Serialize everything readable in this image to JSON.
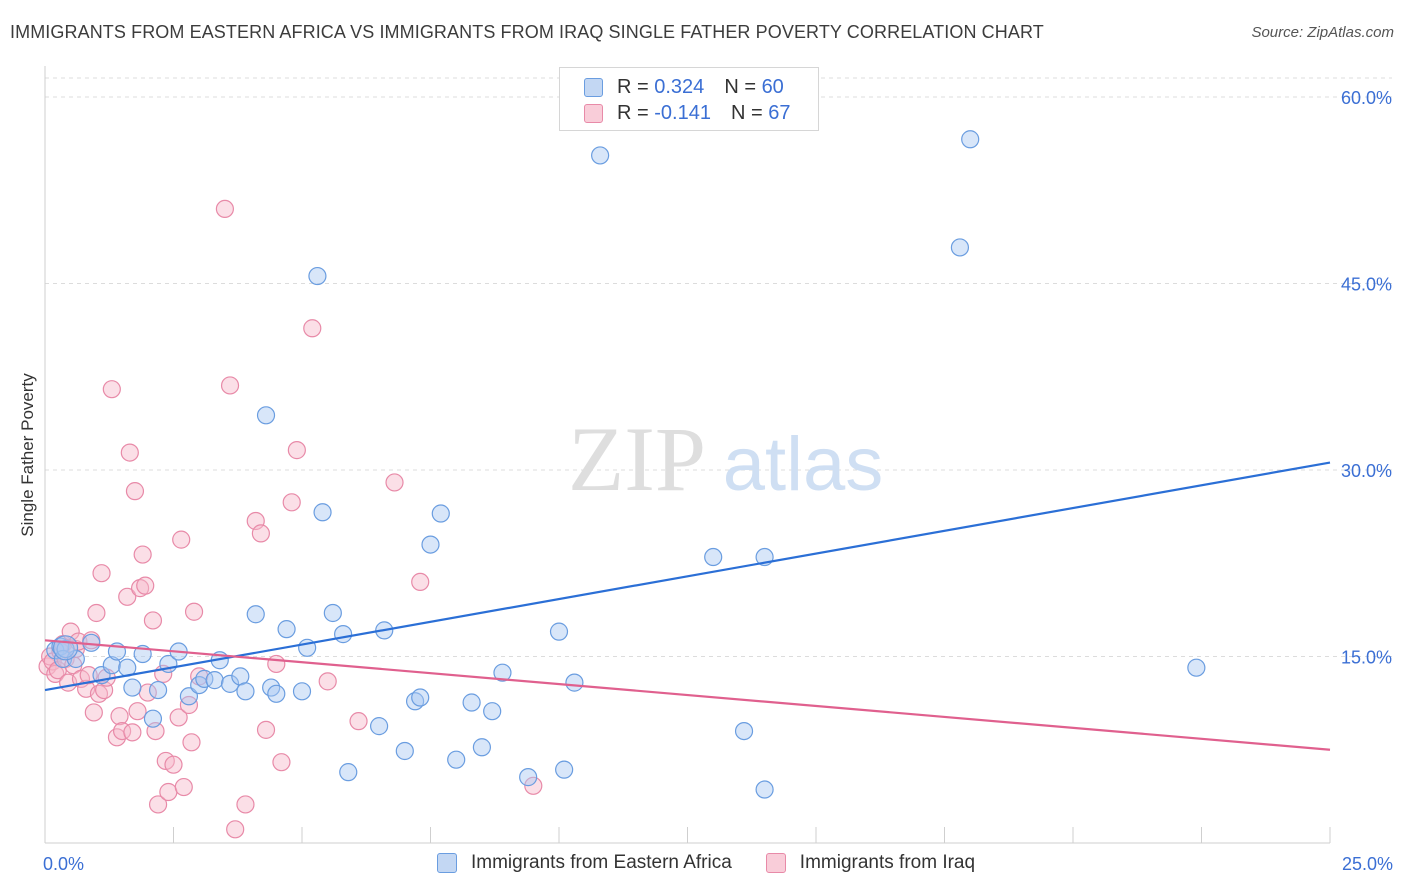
{
  "title": "IMMIGRANTS FROM EASTERN AFRICA VS IMMIGRANTS FROM IRAQ SINGLE FATHER POVERTY CORRELATION CHART",
  "source": "Source: ZipAtlas.com",
  "watermark": {
    "zip": "ZIP",
    "atlas": "atlas"
  },
  "colors": {
    "blue_fill": "#a9c8f2",
    "blue_stroke": "#6a9de0",
    "blue_line": "#2b6fd6",
    "pink_fill": "#f6b9ca",
    "pink_stroke": "#e88aa8",
    "pink_line": "#e0608e",
    "axis_label": "#3b6fd4"
  },
  "legend_top": [
    {
      "r_label": "R =",
      "r_value": "0.324",
      "n_label": "N =",
      "n_value": "60"
    },
    {
      "r_label": "R =",
      "r_value": "-0.141",
      "n_label": "N =",
      "n_value": "67"
    }
  ],
  "legend_bottom": [
    "Immigrants from Eastern Africa",
    "Immigrants from Iraq"
  ],
  "chart_data": {
    "type": "scatter",
    "title": "IMMIGRANTS FROM EASTERN AFRICA VS IMMIGRANTS FROM IRAQ SINGLE FATHER POVERTY CORRELATION CHART",
    "xlabel": "",
    "ylabel": "Single Father Poverty",
    "xlim": [
      0,
      25
    ],
    "ylim": [
      0,
      60
    ],
    "x_tick_labels": [
      "0.0%",
      "25.0%"
    ],
    "y_tick_values": [
      15,
      30,
      45,
      60
    ],
    "y_tick_labels": [
      "15.0%",
      "30.0%",
      "45.0%",
      "60.0%"
    ],
    "series": [
      {
        "name": "Immigrants from Eastern Africa",
        "r": 0.324,
        "n": 60,
        "trend": {
          "x": [
            0,
            25
          ],
          "y": [
            12.3,
            30.6
          ]
        },
        "points": [
          [
            0.2,
            15.5
          ],
          [
            0.3,
            15.8
          ],
          [
            0.35,
            14.8
          ],
          [
            0.6,
            14.8
          ],
          [
            0.9,
            16.1
          ],
          [
            1.1,
            13.5
          ],
          [
            1.3,
            14.3
          ],
          [
            1.4,
            15.4
          ],
          [
            1.6,
            14.1
          ],
          [
            1.7,
            12.5
          ],
          [
            1.9,
            15.2
          ],
          [
            2.1,
            10.0
          ],
          [
            2.2,
            12.3
          ],
          [
            2.4,
            14.4
          ],
          [
            2.6,
            15.4
          ],
          [
            2.8,
            11.8
          ],
          [
            3.0,
            12.7
          ],
          [
            3.1,
            13.2
          ],
          [
            3.3,
            13.1
          ],
          [
            3.4,
            14.7
          ],
          [
            3.6,
            12.8
          ],
          [
            3.8,
            13.4
          ],
          [
            3.9,
            12.2
          ],
          [
            4.1,
            18.4
          ],
          [
            4.3,
            34.4
          ],
          [
            4.4,
            12.5
          ],
          [
            4.5,
            12.0
          ],
          [
            4.7,
            17.2
          ],
          [
            5.0,
            12.2
          ],
          [
            5.1,
            15.7
          ],
          [
            5.3,
            45.6
          ],
          [
            5.4,
            26.6
          ],
          [
            5.6,
            18.5
          ],
          [
            5.8,
            16.8
          ],
          [
            5.9,
            5.7
          ],
          [
            6.5,
            9.4
          ],
          [
            6.6,
            17.1
          ],
          [
            7.0,
            7.4
          ],
          [
            7.2,
            11.4
          ],
          [
            7.3,
            11.7
          ],
          [
            7.5,
            24.0
          ],
          [
            7.7,
            26.5
          ],
          [
            8.0,
            6.7
          ],
          [
            8.3,
            11.3
          ],
          [
            8.5,
            7.7
          ],
          [
            8.7,
            10.6
          ],
          [
            8.9,
            13.7
          ],
          [
            9.4,
            5.3
          ],
          [
            10.0,
            17.0
          ],
          [
            10.1,
            5.9
          ],
          [
            10.3,
            12.9
          ],
          [
            10.8,
            55.3
          ],
          [
            13.0,
            23.0
          ],
          [
            13.6,
            9.0
          ],
          [
            14.0,
            23.0
          ],
          [
            14.0,
            4.3
          ],
          [
            17.8,
            47.9
          ],
          [
            18.0,
            56.6
          ],
          [
            22.4,
            14.1
          ],
          [
            0.4,
            15.6
          ]
        ]
      },
      {
        "name": "Immigrants from Iraq",
        "r": -0.141,
        "n": 67,
        "trend": {
          "x": [
            0,
            25
          ],
          "y": [
            16.3,
            7.5
          ]
        },
        "points": [
          [
            0.05,
            14.2
          ],
          [
            0.1,
            15.0
          ],
          [
            0.15,
            14.6
          ],
          [
            0.2,
            13.6
          ],
          [
            0.25,
            13.9
          ],
          [
            0.3,
            15.4
          ],
          [
            0.35,
            16.0
          ],
          [
            0.4,
            14.8
          ],
          [
            0.45,
            12.9
          ],
          [
            0.5,
            17.0
          ],
          [
            0.55,
            14.3
          ],
          [
            0.6,
            15.6
          ],
          [
            0.65,
            16.2
          ],
          [
            0.7,
            13.2
          ],
          [
            0.8,
            12.4
          ],
          [
            0.85,
            13.5
          ],
          [
            0.9,
            16.3
          ],
          [
            0.95,
            10.5
          ],
          [
            1.0,
            18.5
          ],
          [
            1.05,
            12.0
          ],
          [
            1.1,
            21.7
          ],
          [
            1.15,
            12.3
          ],
          [
            1.2,
            13.3
          ],
          [
            1.3,
            36.5
          ],
          [
            1.4,
            8.5
          ],
          [
            1.45,
            10.2
          ],
          [
            1.5,
            9.0
          ],
          [
            1.6,
            19.8
          ],
          [
            1.65,
            31.4
          ],
          [
            1.7,
            8.9
          ],
          [
            1.75,
            28.3
          ],
          [
            1.8,
            10.6
          ],
          [
            1.85,
            20.5
          ],
          [
            1.9,
            23.2
          ],
          [
            1.95,
            20.7
          ],
          [
            2.0,
            12.1
          ],
          [
            2.1,
            17.9
          ],
          [
            2.15,
            9.0
          ],
          [
            2.2,
            3.1
          ],
          [
            2.3,
            13.6
          ],
          [
            2.35,
            6.6
          ],
          [
            2.4,
            4.1
          ],
          [
            2.5,
            6.3
          ],
          [
            2.6,
            10.1
          ],
          [
            2.65,
            24.4
          ],
          [
            2.7,
            4.5
          ],
          [
            2.8,
            11.1
          ],
          [
            2.85,
            8.1
          ],
          [
            2.9,
            18.6
          ],
          [
            3.0,
            13.4
          ],
          [
            3.5,
            51.0
          ],
          [
            3.6,
            36.8
          ],
          [
            3.7,
            1.1
          ],
          [
            3.9,
            3.1
          ],
          [
            4.1,
            25.9
          ],
          [
            4.2,
            24.9
          ],
          [
            4.3,
            9.1
          ],
          [
            4.5,
            14.4
          ],
          [
            4.6,
            6.5
          ],
          [
            4.8,
            27.4
          ],
          [
            4.9,
            31.6
          ],
          [
            5.2,
            41.4
          ],
          [
            5.5,
            13.0
          ],
          [
            6.1,
            9.8
          ],
          [
            6.8,
            29.0
          ],
          [
            7.3,
            21.0
          ],
          [
            9.5,
            4.6
          ]
        ]
      }
    ]
  }
}
